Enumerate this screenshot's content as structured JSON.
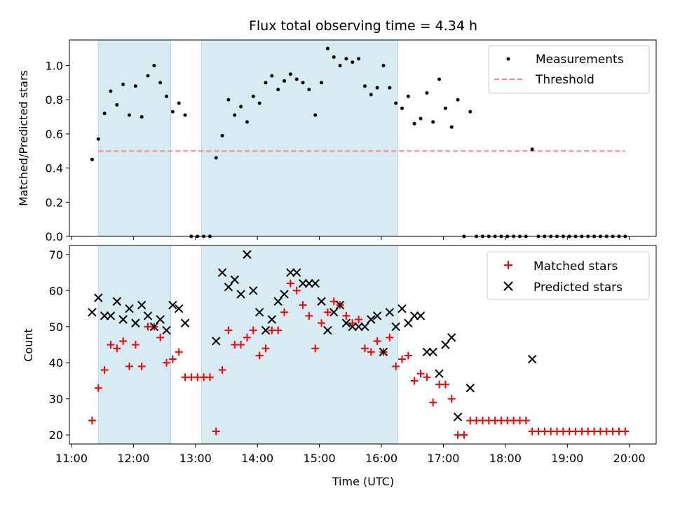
{
  "chart_data": [
    {
      "type": "scatter",
      "title": "Flux total observing time = 4.34 h",
      "xlabel": "",
      "ylabel": "Matched/Predicted stars",
      "ylim": [
        0,
        1.15
      ],
      "yticks": [
        "0.0",
        "0.2",
        "0.4",
        "0.6",
        "0.8",
        "1.0"
      ],
      "grid": false,
      "legend_position": "top-right",
      "shaded_intervals": [
        [
          "11:26",
          "12:36"
        ],
        [
          "13:06",
          "16:16"
        ]
      ],
      "threshold": {
        "name": "Threshold",
        "value": 0.5,
        "x_start": "11:26",
        "x_end": "19:56",
        "color": "#ff7f7f"
      },
      "series": [
        {
          "name": "Measurements",
          "color": "#000000",
          "points": [
            [
              "11:20",
              0.45
            ],
            [
              "11:26",
              0.57
            ],
            [
              "11:32",
              0.72
            ],
            [
              "11:38",
              0.85
            ],
            [
              "11:44",
              0.77
            ],
            [
              "11:50",
              0.89
            ],
            [
              "11:56",
              0.71
            ],
            [
              "12:02",
              0.88
            ],
            [
              "12:08",
              0.7
            ],
            [
              "12:14",
              0.94
            ],
            [
              "12:20",
              1.0
            ],
            [
              "12:26",
              0.9
            ],
            [
              "12:32",
              0.82
            ],
            [
              "12:38",
              0.73
            ],
            [
              "12:44",
              0.78
            ],
            [
              "12:50",
              0.71
            ],
            [
              "12:56",
              0
            ],
            [
              "13:02",
              0
            ],
            [
              "13:08",
              0
            ],
            [
              "13:14",
              0
            ],
            [
              "13:20",
              0.46
            ],
            [
              "13:26",
              0.59
            ],
            [
              "13:32",
              0.8
            ],
            [
              "13:38",
              0.71
            ],
            [
              "13:44",
              0.76
            ],
            [
              "13:50",
              0.67
            ],
            [
              "13:56",
              0.82
            ],
            [
              "14:02",
              0.78
            ],
            [
              "14:08",
              0.9
            ],
            [
              "14:14",
              0.94
            ],
            [
              "14:20",
              0.86
            ],
            [
              "14:26",
              0.91
            ],
            [
              "14:32",
              0.95
            ],
            [
              "14:38",
              0.92
            ],
            [
              "14:44",
              0.9
            ],
            [
              "14:50",
              0.86
            ],
            [
              "14:56",
              0.71
            ],
            [
              "15:02",
              0.9
            ],
            [
              "15:08",
              1.1
            ],
            [
              "15:14",
              1.05
            ],
            [
              "15:20",
              1.0
            ],
            [
              "15:26",
              1.04
            ],
            [
              "15:32",
              1.02
            ],
            [
              "15:38",
              1.04
            ],
            [
              "15:44",
              0.88
            ],
            [
              "15:50",
              0.83
            ],
            [
              "15:56",
              0.87
            ],
            [
              "16:02",
              1.0
            ],
            [
              "16:08",
              0.87
            ],
            [
              "16:14",
              0.78
            ],
            [
              "16:20",
              0.75
            ],
            [
              "16:26",
              0.82
            ],
            [
              "16:32",
              0.66
            ],
            [
              "16:38",
              0.69
            ],
            [
              "16:44",
              0.84
            ],
            [
              "16:50",
              0.67
            ],
            [
              "16:56",
              0.92
            ],
            [
              "17:02",
              0.75
            ],
            [
              "17:08",
              0.64
            ],
            [
              "17:14",
              0.8
            ],
            [
              "17:20",
              0
            ],
            [
              "17:26",
              0.73
            ],
            [
              "17:32",
              0
            ],
            [
              "17:38",
              0
            ],
            [
              "17:44",
              0
            ],
            [
              "17:50",
              0
            ],
            [
              "17:56",
              0
            ],
            [
              "18:02",
              0
            ],
            [
              "18:08",
              0
            ],
            [
              "18:14",
              0
            ],
            [
              "18:20",
              0
            ],
            [
              "18:26",
              0.51
            ],
            [
              "18:32",
              0
            ],
            [
              "18:38",
              0
            ],
            [
              "18:44",
              0
            ],
            [
              "18:50",
              0
            ],
            [
              "18:56",
              0
            ],
            [
              "19:02",
              0
            ],
            [
              "19:08",
              0
            ],
            [
              "19:14",
              0
            ],
            [
              "19:20",
              0
            ],
            [
              "19:26",
              0
            ],
            [
              "19:32",
              0
            ],
            [
              "19:38",
              0
            ],
            [
              "19:44",
              0
            ],
            [
              "19:50",
              0
            ],
            [
              "19:56",
              0
            ]
          ]
        }
      ]
    },
    {
      "type": "scatter",
      "title": "",
      "xlabel": "Time (UTC)",
      "ylabel": "Count",
      "ylim": [
        17.5,
        72.5
      ],
      "yticks": [
        "20",
        "30",
        "40",
        "50",
        "60",
        "70"
      ],
      "xlim": [
        "10:58",
        "20:26"
      ],
      "xticks": [
        "11:00",
        "12:00",
        "13:00",
        "14:00",
        "15:00",
        "16:00",
        "17:00",
        "18:00",
        "19:00",
        "20:00"
      ],
      "grid": false,
      "legend_position": "top-right",
      "shaded_intervals": [
        [
          "11:26",
          "12:36"
        ],
        [
          "13:06",
          "16:16"
        ]
      ],
      "series": [
        {
          "name": "Matched stars",
          "marker": "plus",
          "color": "#ff0000",
          "points": [
            [
              "11:20",
              24
            ],
            [
              "11:26",
              33
            ],
            [
              "11:32",
              38
            ],
            [
              "11:38",
              45
            ],
            [
              "11:44",
              44
            ],
            [
              "11:50",
              46
            ],
            [
              "11:56",
              39
            ],
            [
              "12:02",
              45
            ],
            [
              "12:08",
              39
            ],
            [
              "12:14",
              50
            ],
            [
              "12:20",
              50
            ],
            [
              "12:26",
              47
            ],
            [
              "12:32",
              40
            ],
            [
              "12:38",
              41
            ],
            [
              "12:44",
              43
            ],
            [
              "12:50",
              36
            ],
            [
              "12:56",
              36
            ],
            [
              "13:02",
              36
            ],
            [
              "13:08",
              36
            ],
            [
              "13:14",
              36
            ],
            [
              "13:20",
              21
            ],
            [
              "13:26",
              38
            ],
            [
              "13:32",
              49
            ],
            [
              "13:38",
              45
            ],
            [
              "13:44",
              45
            ],
            [
              "13:50",
              47
            ],
            [
              "13:56",
              49
            ],
            [
              "14:02",
              42
            ],
            [
              "14:08",
              44
            ],
            [
              "14:14",
              49
            ],
            [
              "14:20",
              49
            ],
            [
              "14:26",
              54
            ],
            [
              "14:32",
              62
            ],
            [
              "14:38",
              60
            ],
            [
              "14:44",
              56
            ],
            [
              "14:50",
              53
            ],
            [
              "14:56",
              44
            ],
            [
              "15:02",
              51
            ],
            [
              "15:08",
              54
            ],
            [
              "15:14",
              57
            ],
            [
              "15:20",
              56
            ],
            [
              "15:26",
              53
            ],
            [
              "15:32",
              51
            ],
            [
              "15:38",
              52
            ],
            [
              "15:44",
              44
            ],
            [
              "15:50",
              43
            ],
            [
              "15:56",
              46
            ],
            [
              "16:02",
              43
            ],
            [
              "16:08",
              47
            ],
            [
              "16:14",
              39
            ],
            [
              "16:20",
              41
            ],
            [
              "16:26",
              42
            ],
            [
              "16:32",
              35
            ],
            [
              "16:38",
              37
            ],
            [
              "16:44",
              36
            ],
            [
              "16:50",
              29
            ],
            [
              "16:56",
              34
            ],
            [
              "17:02",
              34
            ],
            [
              "17:08",
              30
            ],
            [
              "17:14",
              20
            ],
            [
              "17:20",
              20
            ],
            [
              "17:26",
              24
            ],
            [
              "17:32",
              24
            ],
            [
              "17:38",
              24
            ],
            [
              "17:44",
              24
            ],
            [
              "17:50",
              24
            ],
            [
              "17:56",
              24
            ],
            [
              "18:02",
              24
            ],
            [
              "18:08",
              24
            ],
            [
              "18:14",
              24
            ],
            [
              "18:20",
              24
            ],
            [
              "18:26",
              21
            ],
            [
              "18:32",
              21
            ],
            [
              "18:38",
              21
            ],
            [
              "18:44",
              21
            ],
            [
              "18:50",
              21
            ],
            [
              "18:56",
              21
            ],
            [
              "19:02",
              21
            ],
            [
              "19:08",
              21
            ],
            [
              "19:14",
              21
            ],
            [
              "19:20",
              21
            ],
            [
              "19:26",
              21
            ],
            [
              "19:32",
              21
            ],
            [
              "19:38",
              21
            ],
            [
              "19:44",
              21
            ],
            [
              "19:50",
              21
            ],
            [
              "19:56",
              21
            ]
          ]
        },
        {
          "name": "Predicted stars",
          "marker": "x",
          "color": "#000000",
          "points": [
            [
              "11:20",
              54
            ],
            [
              "11:26",
              58
            ],
            [
              "11:32",
              53
            ],
            [
              "11:38",
              53
            ],
            [
              "11:44",
              57
            ],
            [
              "11:50",
              52
            ],
            [
              "11:56",
              55
            ],
            [
              "12:02",
              51
            ],
            [
              "12:08",
              56
            ],
            [
              "12:14",
              53
            ],
            [
              "12:20",
              50
            ],
            [
              "12:26",
              52
            ],
            [
              "12:32",
              49
            ],
            [
              "12:38",
              56
            ],
            [
              "12:44",
              55
            ],
            [
              "12:50",
              51
            ],
            [
              "13:20",
              46
            ],
            [
              "13:26",
              65
            ],
            [
              "13:32",
              61
            ],
            [
              "13:38",
              63
            ],
            [
              "13:44",
              59
            ],
            [
              "13:50",
              70
            ],
            [
              "13:56",
              60
            ],
            [
              "14:02",
              54
            ],
            [
              "14:08",
              49
            ],
            [
              "14:14",
              52
            ],
            [
              "14:20",
              57
            ],
            [
              "14:26",
              59
            ],
            [
              "14:32",
              65
            ],
            [
              "14:38",
              65
            ],
            [
              "14:44",
              62
            ],
            [
              "14:50",
              62
            ],
            [
              "14:56",
              62
            ],
            [
              "15:02",
              57
            ],
            [
              "15:08",
              49
            ],
            [
              "15:14",
              54
            ],
            [
              "15:20",
              56
            ],
            [
              "15:26",
              51
            ],
            [
              "15:32",
              50
            ],
            [
              "15:38",
              50
            ],
            [
              "15:44",
              50
            ],
            [
              "15:50",
              52
            ],
            [
              "15:56",
              53
            ],
            [
              "16:02",
              43
            ],
            [
              "16:08",
              54
            ],
            [
              "16:14",
              50
            ],
            [
              "16:20",
              55
            ],
            [
              "16:26",
              51
            ],
            [
              "16:32",
              53
            ],
            [
              "16:38",
              53
            ],
            [
              "16:44",
              43
            ],
            [
              "16:50",
              43
            ],
            [
              "16:56",
              37
            ],
            [
              "17:02",
              45
            ],
            [
              "17:08",
              47
            ],
            [
              "17:14",
              25
            ],
            [
              "17:26",
              33
            ],
            [
              "18:26",
              41
            ]
          ]
        }
      ]
    }
  ]
}
